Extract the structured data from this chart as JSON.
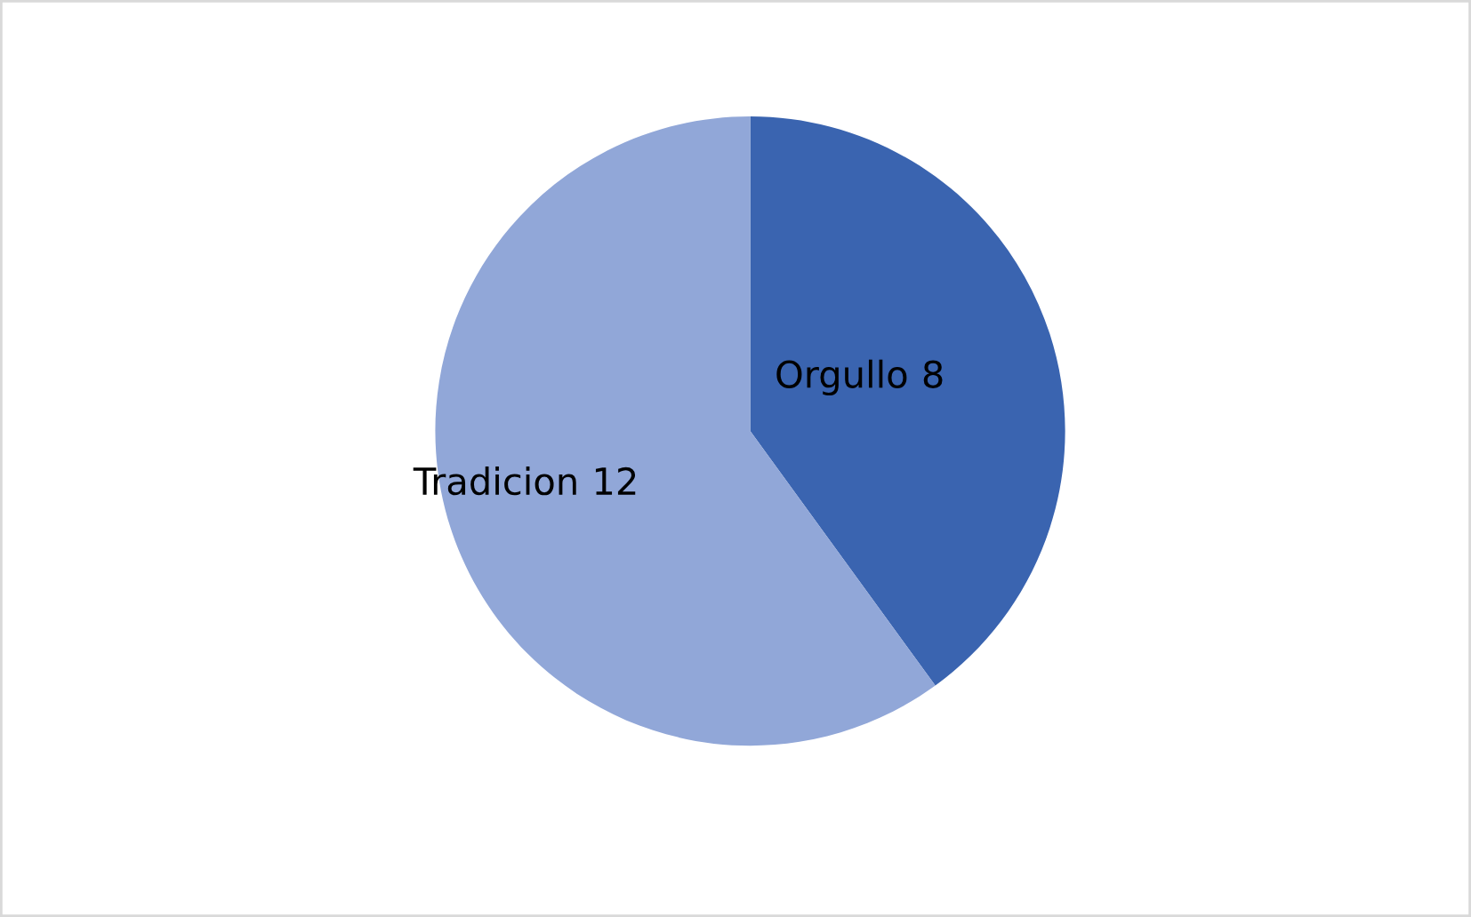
{
  "chart_data": {
    "type": "pie",
    "categories": [
      "Orgullo",
      "Tradicion"
    ],
    "values": [
      8,
      12
    ],
    "colors": [
      "#3a64b0",
      "#91a7d8"
    ],
    "data_labels": true,
    "legend": false
  }
}
